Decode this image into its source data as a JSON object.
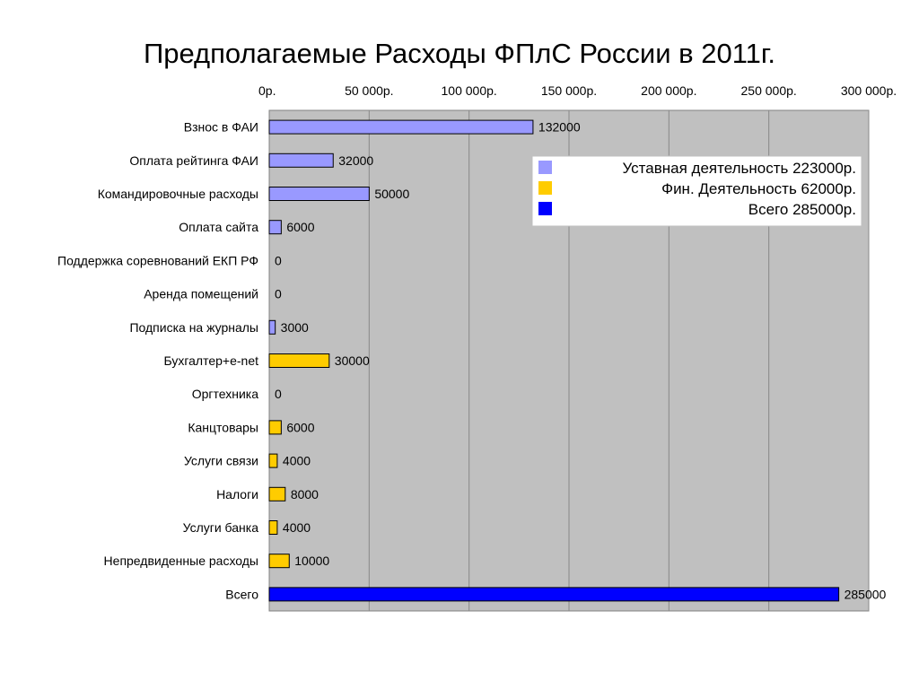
{
  "chart_data": {
    "type": "bar",
    "orientation": "horizontal",
    "title": "Предполагаемые Расходы ФПлС России в 2011г.",
    "xlim": [
      0,
      300000
    ],
    "x_ticks": [
      0,
      50000,
      100000,
      150000,
      200000,
      250000,
      300000
    ],
    "x_tick_labels": [
      "0р.",
      "50 000р.",
      "100 000р.",
      "150 000р.",
      "200 000р.",
      "250 000р.",
      "300 000р."
    ],
    "x_axis_position": "top",
    "grid": true,
    "plot_background": "#c0c0c0",
    "legend_position": "top-right",
    "categories": [
      "Взнос в ФАИ",
      "Оплата рейтинга ФАИ",
      "Командировочные расходы",
      "Оплата сайта",
      "Поддержка соревнований ЕКП РФ",
      "Аренда помещений",
      "Подписка на журналы",
      "Бухгалтер+e-net",
      "Оргтехника",
      "Канцтовары",
      "Услуги связи",
      "Налоги",
      "Услуги банка",
      "Непредвиденные расходы",
      "Всего"
    ],
    "values": [
      132000,
      32000,
      50000,
      6000,
      0,
      0,
      3000,
      30000,
      0,
      6000,
      4000,
      8000,
      4000,
      10000,
      285000
    ],
    "value_labels": [
      "132000",
      "32000",
      "50000",
      "6000",
      "0",
      "0",
      "3000",
      "30000",
      "0",
      "6000",
      "4000",
      "8000",
      "4000",
      "10000",
      "285000"
    ],
    "series_index": [
      0,
      0,
      0,
      0,
      0,
      0,
      0,
      1,
      1,
      1,
      1,
      1,
      1,
      1,
      2
    ],
    "series": [
      {
        "name": "Уставная деятельность 223000р.",
        "color": "#9999ff"
      },
      {
        "name": "Фин. Деятельность 62000р.",
        "color": "#ffcc00"
      },
      {
        "name": "Всего 285000р.",
        "color": "#0000ff"
      }
    ]
  }
}
